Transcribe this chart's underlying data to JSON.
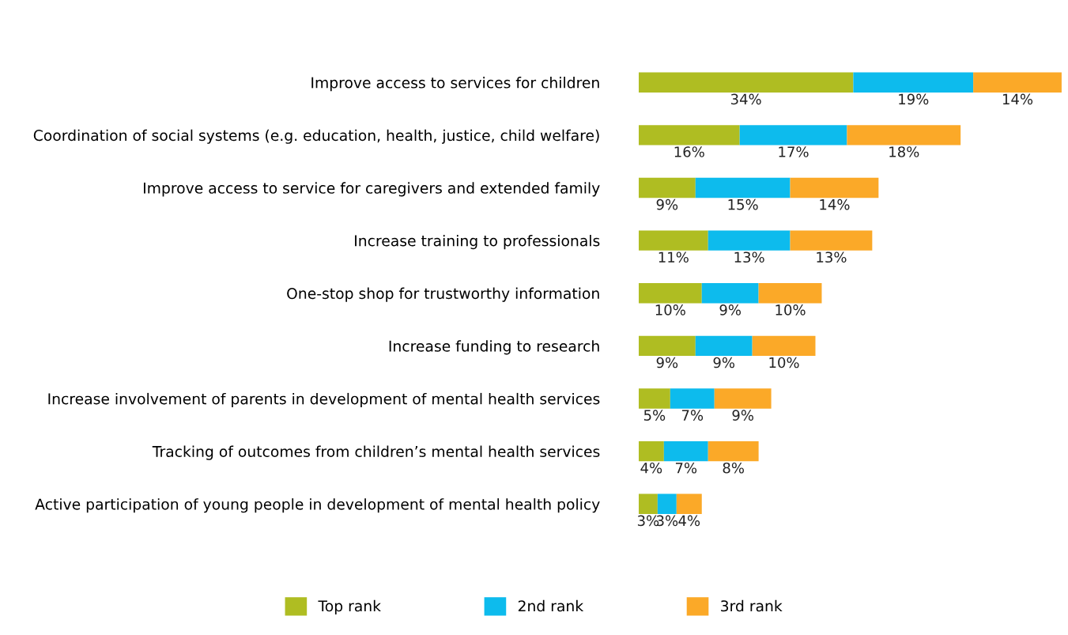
{
  "chart_data": {
    "type": "bar",
    "orientation": "horizontal",
    "stacked": true,
    "tick_labels": "y",
    "grid": false,
    "legend": "bottom",
    "categories": [
      "Improve access to services for children",
      "Coordination of social systems (e.g. education, health, justice, child welfare)",
      "Improve access to service for caregivers and extended family",
      "Increase training to professionals",
      "One-stop shop for trustworthy information",
      "Increase funding to research",
      "Increase involvement of parents in development of mental health services",
      "Tracking of outcomes from children’s mental health services",
      "Active participation of young people in development of mental health policy"
    ],
    "series": [
      {
        "name": "Top rank",
        "color": "#afbd22",
        "values": [
          34,
          16,
          9,
          11,
          10,
          9,
          5,
          4,
          3
        ],
        "value_labels": [
          "34%",
          "16%",
          "9%",
          "11%",
          "10%",
          "9%",
          "5%",
          "4%",
          "3%"
        ]
      },
      {
        "name": "2nd rank",
        "color": "#0dbbed",
        "values": [
          19,
          17,
          15,
          13,
          9,
          9,
          7,
          7,
          3
        ],
        "value_labels": [
          "19%",
          "17%",
          "15%",
          "13%",
          "9%",
          "9%",
          "7%",
          "7%",
          "3%"
        ]
      },
      {
        "name": "3rd rank",
        "color": "#fba928",
        "values": [
          14,
          18,
          14,
          13,
          10,
          10,
          9,
          8,
          4
        ],
        "value_labels": [
          "14%",
          "18%",
          "14%",
          "13%",
          "10%",
          "10%",
          "9%",
          "8%",
          "4%"
        ]
      }
    ]
  }
}
